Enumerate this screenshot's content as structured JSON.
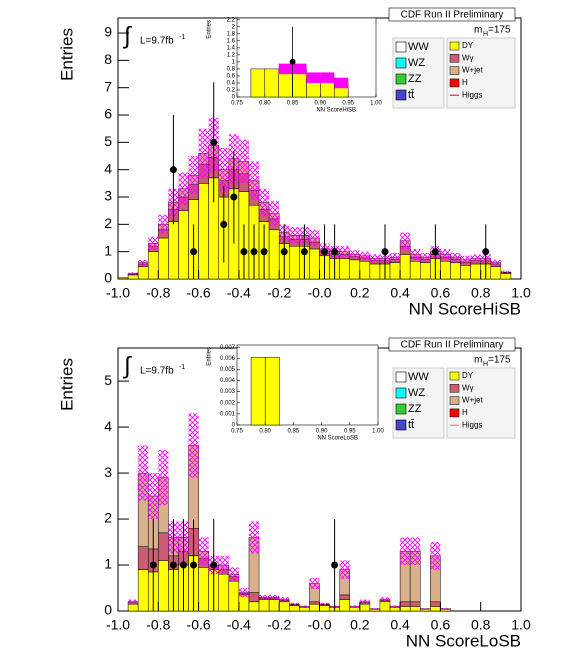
{
  "chart_data": [
    {
      "type": "histogram",
      "xlabel": "NN ScoreHiSB",
      "ylabel": "Entries",
      "cdf_label": "CDF Run II Preliminary",
      "integral": "∫",
      "lumi": "L=9.7fb",
      "lumi_sup": "-1",
      "mass": "m",
      "mass_sub": "H",
      "mass_value": "=175",
      "xlim": [
        -1,
        1
      ],
      "ylim": [
        0,
        9.55
      ],
      "xticks": [
        {
          "value": -1,
          "label": "-1.0"
        },
        -0.8,
        -0.6,
        -0.4,
        -0.2,
        {
          "value": 0,
          "label": "-0.0"
        },
        0.2,
        0.4,
        0.6,
        0.8,
        {
          "value": 1,
          "label": "1.0"
        }
      ],
      "yticks": [
        0,
        1,
        2,
        3,
        4,
        5,
        6,
        7,
        8,
        9
      ],
      "bins": [
        -1,
        -0.95,
        -0.9,
        -0.85,
        -0.8,
        -0.75,
        -0.7,
        -0.65,
        -0.6,
        -0.55,
        -0.5,
        -0.45,
        -0.4,
        -0.35,
        -0.3,
        -0.25,
        -0.2,
        -0.15,
        -0.1,
        -0.05,
        0,
        0.05,
        0.1,
        0.15,
        0.2,
        0.25,
        0.3,
        0.35,
        0.4,
        0.45,
        0.5,
        0.55,
        0.6,
        0.65,
        0.7,
        0.75,
        0.8,
        0.85,
        0.9,
        0.95,
        1
      ],
      "series": [
        {
          "name": "DY",
          "color": "#ffff00",
          "values": [
            0.05,
            0.15,
            0.45,
            1.0,
            1.5,
            2.1,
            2.5,
            2.9,
            3.5,
            3.7,
            3.0,
            3.3,
            3.2,
            2.7,
            2.1,
            1.8,
            1.3,
            1.2,
            1.2,
            1.1,
            0.85,
            0.75,
            0.75,
            0.7,
            0.65,
            0.55,
            0.55,
            0.6,
            0.9,
            0.65,
            0.6,
            0.75,
            0.65,
            0.6,
            0.5,
            0.55,
            0.55,
            0.45,
            0.2,
            0
          ]
        },
        {
          "name": "Wγ",
          "color": "#cc5c74",
          "values": [
            0,
            0.03,
            0.1,
            0.2,
            0.3,
            0.45,
            0.5,
            0.55,
            0.7,
            0.75,
            0.6,
            0.7,
            0.65,
            0.55,
            0.45,
            0.4,
            0.25,
            0.25,
            0.25,
            0.25,
            0.15,
            0.15,
            0.15,
            0.12,
            0.12,
            0.12,
            0.12,
            0.12,
            0.3,
            0.15,
            0.12,
            0.15,
            0.15,
            0.12,
            0.12,
            0.12,
            0.12,
            0.1,
            0.03,
            0
          ]
        },
        {
          "name": "W+jet",
          "color": "#d9b08c",
          "values": [
            0,
            0.02,
            0.05,
            0.1,
            0.2,
            0.25,
            0.3,
            0.35,
            0.4,
            0.45,
            0.4,
            0.4,
            0.45,
            0.35,
            0.25,
            0.2,
            0.15,
            0.15,
            0.15,
            0.15,
            0.1,
            0.1,
            0.1,
            0.08,
            0.08,
            0.08,
            0.08,
            0.08,
            0.2,
            0.1,
            0.08,
            0.1,
            0.1,
            0.08,
            0.08,
            0.08,
            0.08,
            0.05,
            0.02,
            0
          ]
        }
      ],
      "band": {
        "color": "#ff00ff",
        "values": [
          0.01,
          0.04,
          0.1,
          0.25,
          0.35,
          0.5,
          0.6,
          0.7,
          0.9,
          1.0,
          0.8,
          0.9,
          0.8,
          0.7,
          0.5,
          0.45,
          0.3,
          0.3,
          0.3,
          0.3,
          0.2,
          0.2,
          0.2,
          0.15,
          0.15,
          0.15,
          0.15,
          0.15,
          0.3,
          0.2,
          0.15,
          0.2,
          0.2,
          0.15,
          0.15,
          0.15,
          0.15,
          0.1,
          0.05,
          0
        ]
      },
      "points": {
        "x": [
          -0.725,
          -0.625,
          -0.525,
          -0.475,
          -0.425,
          -0.375,
          -0.325,
          -0.275,
          -0.175,
          -0.075,
          0.025,
          0.075,
          0.325,
          0.575,
          0.825
        ],
        "y": [
          4,
          1,
          5,
          2,
          3,
          1,
          1,
          1,
          1,
          1,
          1,
          1,
          1,
          1,
          1
        ],
        "err": [
          2,
          1,
          2.2,
          1.4,
          1.7,
          1,
          1,
          1,
          1,
          1,
          1,
          1,
          1,
          1,
          1
        ]
      },
      "legend_left": [
        {
          "name": "WW",
          "color": "#ffffff"
        },
        {
          "name": "WZ",
          "color": "#00ffff"
        },
        {
          "name": "ZZ",
          "color": "#33cc33"
        },
        {
          "name": "tt̄",
          "color": "#4444cc"
        }
      ],
      "legend_extra": [
        {
          "name": "H",
          "color": "#ff0000"
        },
        {
          "name": "Higgs",
          "color": "#ff0000"
        }
      ],
      "inset": {
        "xlabel": "NN ScoreHiSB",
        "ylabel": "Entries",
        "xlim": [
          0.75,
          1
        ],
        "ylim": [
          0,
          2.25
        ],
        "xticks": [
          0.75,
          {
            "value": 0.8,
            "label": "0.80"
          },
          0.85,
          {
            "value": 0.9,
            "label": "0.90"
          },
          0.95,
          {
            "value": 1,
            "label": "1.00"
          }
        ],
        "yticks": [
          0,
          0.2,
          0.4,
          0.6,
          0.8,
          1,
          1.2,
          1.4,
          1.6,
          1.8,
          2,
          2.2
        ],
        "bins": [
          0.75,
          0.775,
          0.8,
          0.825,
          0.85,
          0.875,
          0.9,
          0.925,
          0.95,
          0.975,
          1
        ],
        "color": "#ffff00",
        "values": [
          0,
          0.8,
          0.8,
          0.8,
          0.8,
          0.55,
          0.55,
          0.4,
          0,
          0
        ],
        "band": [
          0,
          0,
          0,
          0.15,
          0.15,
          0.15,
          0.15,
          0.15,
          0,
          0
        ],
        "points": {
          "x": [
            0.85
          ],
          "y": [
            1
          ],
          "err": [
            1
          ]
        }
      }
    },
    {
      "type": "histogram",
      "xlabel": "NN ScoreLoSB",
      "ylabel": "Entries",
      "cdf_label": "CDF Run II Preliminary",
      "integral": "∫",
      "lumi": "L=9.7fb",
      "lumi_sup": "-1",
      "mass": "m",
      "mass_sub": "H",
      "mass_value": "=175",
      "xlim": [
        -1,
        1
      ],
      "ylim": [
        0,
        5.72
      ],
      "xticks": [
        {
          "value": -1,
          "label": "-1.0"
        },
        -0.8,
        -0.6,
        -0.4,
        -0.2,
        {
          "value": 0,
          "label": "-0.0"
        },
        0.2,
        0.4,
        0.6,
        0.8,
        {
          "value": 1,
          "label": "1.0"
        }
      ],
      "yticks": [
        0,
        1,
        2,
        3,
        4,
        5
      ],
      "bins": [
        -1,
        -0.95,
        -0.9,
        -0.85,
        -0.8,
        -0.75,
        -0.7,
        -0.65,
        -0.6,
        -0.55,
        -0.5,
        -0.45,
        -0.4,
        -0.35,
        -0.3,
        -0.25,
        -0.2,
        -0.15,
        -0.1,
        -0.05,
        0,
        0.05,
        0.1,
        0.15,
        0.2,
        0.25,
        0.3,
        0.35,
        0.4,
        0.45,
        0.5,
        0.55,
        0.6,
        0.65,
        0.7,
        0.75,
        0.8,
        0.85,
        0.9,
        0.95,
        1
      ],
      "series": [
        {
          "name": "DY",
          "color": "#ffff00",
          "values": [
            0,
            0.15,
            0.9,
            0.85,
            1.1,
            0.9,
            1.0,
            1.2,
            0.95,
            0.9,
            0.8,
            0.65,
            0.35,
            0.2,
            0.25,
            0.25,
            0.2,
            0.12,
            0.08,
            0.15,
            0.12,
            0.08,
            0.25,
            0.08,
            0.15,
            0.04,
            0.2,
            0.08,
            0.1,
            0.1,
            0.04,
            0.1,
            0.04,
            0,
            0,
            0,
            0,
            0,
            0,
            0
          ]
        },
        {
          "name": "Wγ",
          "color": "#cc5c74",
          "values": [
            0,
            0.03,
            0.5,
            0.5,
            0.6,
            0.3,
            0.3,
            0.6,
            0.2,
            0.1,
            0.1,
            0.1,
            0.03,
            0.2,
            0.03,
            0.03,
            0.03,
            0.02,
            0.02,
            0.05,
            0.02,
            0.02,
            0.1,
            0.02,
            0.03,
            0.01,
            0.03,
            0.02,
            0.1,
            0.1,
            0.01,
            0.1,
            0.01,
            0,
            0,
            0,
            0,
            0,
            0,
            0
          ]
        },
        {
          "name": "W+jet",
          "color": "#d9b08c",
          "values": [
            0,
            0.02,
            1.6,
            1.15,
            1.2,
            0.4,
            0.3,
            1.8,
            0.15,
            0,
            0.1,
            0.05,
            0.02,
            1.2,
            0.02,
            0.02,
            0.02,
            0.01,
            0,
            0.4,
            0.01,
            0,
            0.55,
            0,
            0.02,
            0,
            0.02,
            0,
            1.1,
            1.1,
            0,
            1.0,
            0,
            0,
            0,
            0,
            0,
            0,
            0,
            0
          ]
        }
      ],
      "band": {
        "color": "#ff00ff",
        "values": [
          0,
          0.05,
          0.6,
          0.5,
          0.6,
          0.35,
          0.35,
          0.7,
          0.3,
          0.2,
          0.2,
          0.15,
          0.1,
          0.35,
          0.05,
          0.05,
          0.05,
          0.03,
          0.02,
          0.12,
          0.03,
          0.02,
          0.2,
          0.02,
          0.05,
          0.01,
          0.05,
          0.02,
          0.3,
          0.3,
          0.01,
          0.3,
          0.01,
          0,
          0,
          0,
          0,
          0,
          0,
          0
        ]
      },
      "points": {
        "x": [
          -0.825,
          -0.725,
          -0.675,
          -0.625,
          -0.525,
          0.075
        ],
        "y": [
          1,
          1,
          1,
          1,
          1,
          1
        ],
        "err": [
          1,
          1,
          1,
          1,
          1,
          1
        ]
      },
      "legend_left": [
        {
          "name": "WW",
          "color": "#ffffff"
        },
        {
          "name": "WZ",
          "color": "#00ffff"
        },
        {
          "name": "ZZ",
          "color": "#33cc33"
        },
        {
          "name": "tt̄",
          "color": "#4444cc"
        }
      ],
      "legend_extra": [
        {
          "name": "H",
          "color": "#ff0000"
        },
        {
          "name": "Higgs",
          "color": "#ff6666"
        }
      ],
      "inset": {
        "xlabel": "NN ScoreLoSB",
        "ylabel": "Entries",
        "xlim": [
          0.75,
          1
        ],
        "ylim": [
          0,
          0.0072
        ],
        "xticks": [
          0.75,
          {
            "value": 0.8,
            "label": "0.80"
          },
          0.85,
          {
            "value": 0.9,
            "label": "0.90"
          },
          0.95,
          {
            "value": 1,
            "label": "1.00"
          }
        ],
        "yticks": [
          0,
          0.001,
          0.002,
          0.003,
          0.004,
          0.005,
          0.006,
          0.007
        ],
        "bins": [
          0.75,
          0.775,
          0.8,
          0.825,
          0.85,
          0.875,
          0.9,
          0.925,
          0.95,
          0.975,
          1
        ],
        "color": "#ffff00",
        "values": [
          0,
          0.0061,
          0.0061,
          0,
          0,
          0,
          0,
          0,
          0,
          0
        ],
        "band": [
          0,
          0,
          0,
          0,
          0,
          0,
          0,
          0,
          0,
          0
        ],
        "points": {
          "x": [],
          "y": [],
          "err": []
        }
      }
    }
  ]
}
